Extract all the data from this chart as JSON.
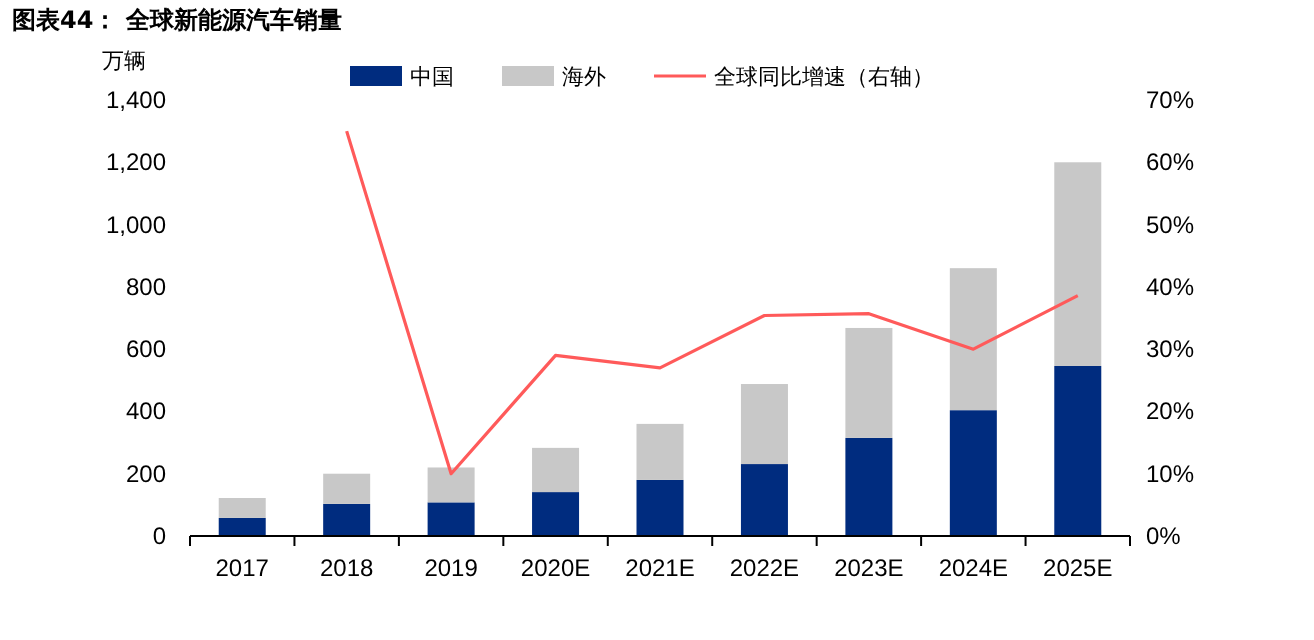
{
  "chart_data": {
    "type": "bar",
    "title": "图表44：  全球新能源汽车销量",
    "ylabel": "万辆",
    "stacked": true,
    "legend": "top",
    "grid": false,
    "categories": [
      "2017",
      "2018",
      "2019",
      "2020E",
      "2021E",
      "2022E",
      "2023E",
      "2024E",
      "2025E"
    ],
    "series": [
      {
        "name": "中国",
        "color": "#002c7f",
        "values": [
          58,
          103,
          108,
          141,
          180,
          231,
          315,
          404,
          546
        ]
      },
      {
        "name": "海外",
        "color": "#c8c8c8",
        "values": [
          64,
          97,
          112,
          142,
          180,
          257,
          353,
          456,
          654
        ]
      },
      {
        "name": "全球同比增速（右轴）",
        "type": "line",
        "axis": "y2",
        "color": "#ff5a5a",
        "values": [
          null,
          65,
          10,
          29,
          27,
          35.4,
          35.7,
          30,
          38.6
        ]
      }
    ],
    "ylim": [
      0,
      1400
    ],
    "yticks": [
      0,
      200,
      400,
      600,
      800,
      {
        "value": 1000,
        "label": "1,000"
      },
      {
        "value": 1200,
        "label": "1,200"
      },
      {
        "value": 1400,
        "label": "1,400"
      }
    ],
    "y2lim": [
      0,
      70
    ],
    "y2ticks": [
      {
        "value": 0,
        "label": "0%"
      },
      {
        "value": 10,
        "label": "10%"
      },
      {
        "value": 20,
        "label": "20%"
      },
      {
        "value": 30,
        "label": "30%"
      },
      {
        "value": 40,
        "label": "40%"
      },
      {
        "value": 50,
        "label": "50%"
      },
      {
        "value": 60,
        "label": "60%"
      },
      {
        "value": 70,
        "label": "70%"
      }
    ]
  }
}
